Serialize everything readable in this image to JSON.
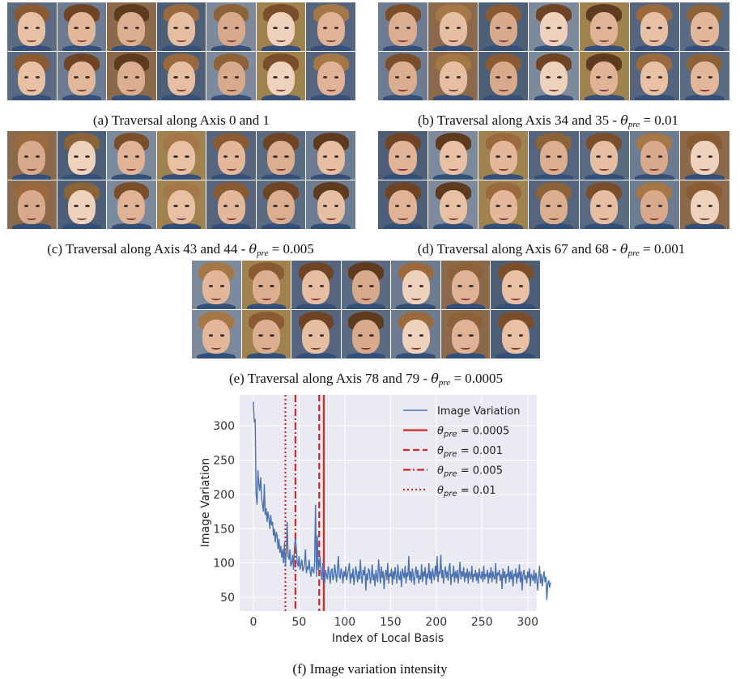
{
  "panels": [
    {
      "id": "a",
      "caption": "(a) Traversal along Axis 0 and 1",
      "theta": ""
    },
    {
      "id": "b",
      "caption": "(b) Traversal along Axis 34 and 35 -",
      "theta": "0.01"
    },
    {
      "id": "c",
      "caption": "(c) Traversal along Axis 43 and 44 -",
      "theta": "0.005"
    },
    {
      "id": "d",
      "caption": "(d) Traversal along Axis 67 and 68 -",
      "theta": "0.001"
    },
    {
      "id": "e",
      "caption": "(e) Traversal along Axis 78 and 79 -",
      "theta": "0.0005"
    }
  ],
  "theta_symbol": "θ",
  "theta_sub": "pre",
  "equals": "=",
  "caption_f": "(f) Image variation intensity",
  "chart_data": {
    "type": "line",
    "xlabel": "Index of Local Basis",
    "ylabel": "Image Variation",
    "xlim": [
      -15,
      310
    ],
    "ylim": [
      30,
      345
    ],
    "xticks": [
      0,
      50,
      100,
      150,
      200,
      250,
      300
    ],
    "yticks": [
      50,
      100,
      150,
      200,
      250,
      300
    ],
    "grid": true,
    "legend_position": "top-right",
    "series": [
      {
        "name": "Image Variation",
        "color": "#4c72b0",
        "x_start": 0,
        "x_step": 1,
        "values": [
          335,
          305,
          310,
          200,
          185,
          235,
          215,
          205,
          225,
          195,
          185,
          175,
          215,
          170,
          180,
          160,
          175,
          165,
          150,
          170,
          155,
          160,
          140,
          150,
          130,
          145,
          140,
          120,
          135,
          115,
          125,
          108,
          120,
          100,
          130,
          95,
          115,
          160,
          110,
          105,
          120,
          95,
          100,
          112,
          90,
          125,
          135,
          120,
          100,
          95,
          110,
          90,
          98,
          105,
          88,
          92,
          100,
          120,
          85,
          95,
          90,
          105,
          88,
          80,
          95,
          90,
          85,
          100,
          185,
          80,
          140,
          90,
          95,
          110,
          85,
          75,
          100,
          88,
          70,
          90,
          82,
          76,
          95,
          85,
          70,
          88,
          92,
          75,
          80,
          98,
          85,
          72,
          90,
          110,
          80,
          78,
          92,
          85,
          70,
          88,
          80,
          95,
          75,
          82,
          90,
          100,
          70,
          85,
          78,
          92,
          68,
          80,
          95,
          85,
          72,
          88,
          76,
          105,
          80,
          70,
          90,
          82,
          95,
          60,
          85,
          75,
          92,
          88,
          70,
          80,
          98,
          75,
          84,
          66,
          90,
          80,
          72,
          105,
          85,
          70,
          95,
          78,
          88,
          62,
          82,
          90,
          75,
          100,
          70,
          85,
          80,
          92,
          68,
          88,
          76,
          94,
          82,
          70,
          98,
          80,
          75,
          88,
          65,
          92,
          84,
          78,
          96,
          70,
          86,
          80,
          110,
          75,
          88,
          72,
          92,
          80,
          68,
          85,
          95,
          78,
          90,
          70,
          82,
          76,
          98,
          72,
          88,
          80,
          94,
          68,
          85,
          78,
          100,
          76,
          88,
          70,
          92,
          82,
          75,
          96,
          80,
          110,
          72,
          88,
          84,
          112,
          78,
          90,
          70,
          86,
          95,
          78,
          88,
          74,
          92,
          100,
          68,
          84,
          80,
          96,
          72,
          88,
          78,
          90,
          70,
          84,
          102,
          76,
          88,
          80,
          94,
          72,
          86,
          78,
          92,
          70,
          88,
          82,
          76,
          96,
          72,
          84,
          80,
          90,
          74,
          86,
          70,
          92,
          80,
          78,
          88,
          72,
          96,
          76,
          84,
          80,
          90,
          70,
          86,
          78,
          94,
          72,
          88,
          80,
          76,
          100,
          70,
          86,
          82,
          90,
          74,
          84,
          62,
          92,
          78,
          88,
          70,
          84,
          80,
          96,
          72,
          88,
          76,
          90,
          66,
          84,
          80,
          92,
          70,
          86,
          78,
          98,
          72,
          88,
          60,
          84,
          90,
          76,
          82,
          70,
          88,
          78,
          92,
          66,
          84,
          80,
          74,
          90,
          70,
          86,
          76,
          60,
          82,
          96,
          70,
          84,
          66,
          78,
          88,
          72,
          80,
          46,
          70,
          75,
          64,
          72
        ]
      },
      {
        "name": "θ_pre = 0.0005",
        "color": "#d62728",
        "x": 77,
        "style": "solid"
      },
      {
        "name": "θ_pre = 0.001",
        "color": "#d62728",
        "x": 72,
        "style": "dashed"
      },
      {
        "name": "θ_pre = 0.005",
        "color": "#d62728",
        "x": 46,
        "style": "dashdot"
      },
      {
        "name": "θ_pre = 0.01",
        "color": "#d62728",
        "x": 35,
        "style": "dotted"
      }
    ],
    "legend": [
      "Image Variation",
      "0.0005",
      "0.001",
      "0.005",
      "0.01"
    ]
  },
  "colors": {
    "background": "#eaeaf2",
    "grid": "#ffffff",
    "line": "#4c72b0",
    "threshold": "#d62728"
  }
}
